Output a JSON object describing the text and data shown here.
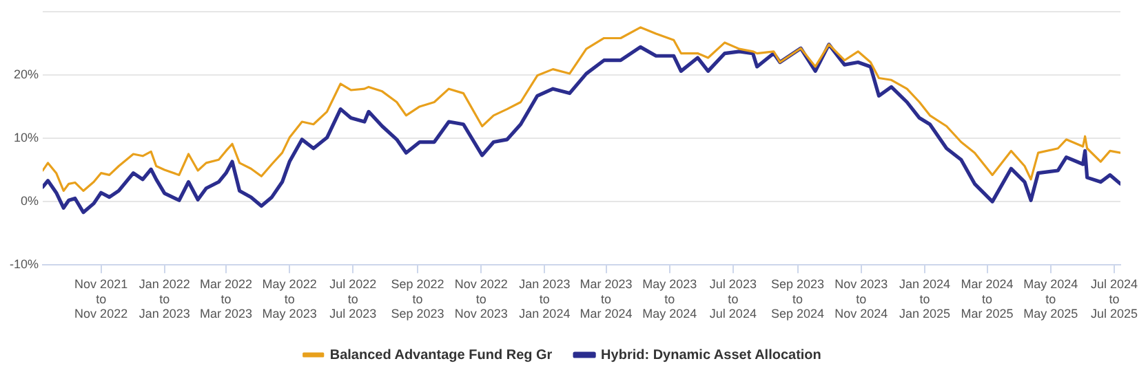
{
  "chart_data": {
    "type": "line",
    "x": [
      "2021-09-06",
      "2021-09-11",
      "2021-09-19",
      "2021-09-26",
      "2021-10-01",
      "2021-10-07",
      "2021-10-15",
      "2021-10-25",
      "2021-11-01",
      "2021-11-09",
      "2021-11-18",
      "2021-12-02",
      "2021-12-11",
      "2021-12-19",
      "2021-12-24",
      "2022-01-01",
      "2022-01-15",
      "2022-01-24",
      "2022-02-02",
      "2022-02-10",
      "2022-02-22",
      "2022-03-01",
      "2022-03-07",
      "2022-03-14",
      "2022-03-25",
      "2022-04-04",
      "2022-04-14",
      "2022-04-24",
      "2022-05-01",
      "2022-05-13",
      "2022-05-24",
      "2022-06-06",
      "2022-06-19",
      "2022-06-29",
      "2022-07-12",
      "2022-07-16",
      "2022-07-29",
      "2022-08-12",
      "2022-08-21",
      "2022-09-03",
      "2022-09-17",
      "2022-10-01",
      "2022-10-15",
      "2022-11-02",
      "2022-11-13",
      "2022-11-26",
      "2022-12-09",
      "2022-12-25",
      "2023-01-09",
      "2023-01-25",
      "2023-02-10",
      "2023-02-27",
      "2023-03-15",
      "2023-04-03",
      "2023-04-18",
      "2023-05-05",
      "2023-05-12",
      "2023-05-28",
      "2023-06-07",
      "2023-06-23",
      "2023-07-07",
      "2023-07-20",
      "2023-07-24",
      "2023-08-09",
      "2023-08-15",
      "2023-09-04",
      "2023-09-18",
      "2023-10-01",
      "2023-10-16",
      "2023-10-29",
      "2023-11-10",
      "2023-11-18",
      "2023-11-30",
      "2023-12-15",
      "2023-12-27",
      "2024-01-06",
      "2024-01-22",
      "2024-02-05",
      "2024-02-18",
      "2024-03-06",
      "2024-03-24",
      "2024-04-06",
      "2024-04-12",
      "2024-04-19",
      "2024-05-08",
      "2024-05-16",
      "2024-06-01",
      "2024-06-03",
      "2024-06-05",
      "2024-06-18",
      "2024-06-27",
      "2024-07-07"
    ],
    "series": [
      {
        "name": "Balanced Advantage Fund Reg Gr",
        "color": "#e8a01c",
        "values": [
          4.9,
          6.1,
          4.5,
          1.7,
          2.8,
          3.0,
          1.7,
          3.1,
          4.5,
          4.2,
          5.6,
          7.5,
          7.2,
          7.9,
          5.6,
          5.0,
          4.2,
          7.5,
          4.9,
          6.1,
          6.6,
          8.0,
          9.1,
          6.1,
          5.2,
          4.0,
          5.9,
          7.7,
          10.1,
          12.6,
          12.2,
          14.2,
          18.6,
          17.6,
          17.8,
          18.1,
          17.4,
          15.7,
          13.6,
          15.0,
          15.7,
          17.8,
          17.1,
          11.9,
          13.6,
          14.6,
          15.7,
          19.9,
          20.9,
          20.2,
          24.1,
          25.8,
          25.8,
          27.5,
          26.5,
          25.5,
          23.4,
          23.4,
          22.7,
          25.1,
          24.1,
          23.7,
          23.4,
          23.7,
          22.0,
          24.2,
          21.3,
          24.8,
          22.3,
          23.7,
          22.0,
          19.5,
          19.2,
          17.8,
          15.7,
          13.6,
          11.9,
          9.4,
          7.7,
          4.2,
          8.0,
          5.6,
          3.5,
          7.7,
          8.4,
          9.8,
          8.7,
          10.3,
          8.4,
          6.3,
          8.0,
          7.7
        ]
      },
      {
        "name": "Hybrid: Dynamic Asset Allocation",
        "color": "#2b2d8e",
        "values": [
          2.3,
          3.3,
          1.4,
          -1.0,
          0.2,
          0.5,
          -1.7,
          -0.3,
          1.4,
          0.7,
          1.7,
          4.5,
          3.5,
          5.1,
          3.5,
          1.3,
          0.2,
          3.1,
          0.3,
          2.1,
          3.1,
          4.5,
          6.3,
          1.7,
          0.7,
          -0.7,
          0.7,
          3.1,
          6.3,
          9.8,
          8.4,
          10.1,
          14.6,
          13.2,
          12.6,
          14.2,
          11.9,
          9.8,
          7.7,
          9.4,
          9.4,
          12.6,
          12.2,
          7.3,
          9.4,
          9.8,
          12.2,
          16.7,
          17.8,
          17.1,
          20.2,
          22.3,
          22.3,
          24.4,
          23.0,
          23.0,
          20.6,
          22.7,
          20.6,
          23.4,
          23.7,
          23.4,
          21.3,
          23.4,
          22.0,
          24.2,
          20.6,
          24.8,
          21.6,
          22.0,
          21.3,
          16.7,
          18.1,
          15.7,
          13.2,
          12.2,
          8.4,
          6.6,
          2.8,
          0.0,
          5.2,
          3.1,
          0.2,
          4.5,
          4.9,
          7.0,
          5.9,
          8.0,
          3.8,
          3.1,
          4.2,
          2.8
        ]
      }
    ],
    "xlim": [
      "2021-09-06",
      "2024-07-07"
    ],
    "xticks": [
      {
        "value": "2021-11-01",
        "label": "Nov 2021\nto\nNov 2022"
      },
      {
        "value": "2022-01-01",
        "label": "Jan 2022\nto\nJan 2023"
      },
      {
        "value": "2022-03-01",
        "label": "Mar 2022\nto\nMar 2023"
      },
      {
        "value": "2022-05-01",
        "label": "May 2022\nto\nMay 2023"
      },
      {
        "value": "2022-07-01",
        "label": "Jul 2022\nto\nJul 2023"
      },
      {
        "value": "2022-09-01",
        "label": "Sep 2022\nto\nSep 2023"
      },
      {
        "value": "2022-11-01",
        "label": "Nov 2022\nto\nNov 2023"
      },
      {
        "value": "2023-01-01",
        "label": "Jan 2023\nto\nJan 2024"
      },
      {
        "value": "2023-03-01",
        "label": "Mar 2023\nto\nMar 2024"
      },
      {
        "value": "2023-05-01",
        "label": "May 2023\nto\nMay 2024"
      },
      {
        "value": "2023-07-01",
        "label": "Jul 2023\nto\nJul 2024"
      },
      {
        "value": "2023-09-01",
        "label": "Sep 2023\nto\nSep 2024"
      },
      {
        "value": "2023-11-01",
        "label": "Nov 2023\nto\nNov 2024"
      },
      {
        "value": "2024-01-01",
        "label": "Jan 2024\nto\nJan 2025"
      },
      {
        "value": "2024-03-01",
        "label": "Mar 2024\nto\nMar 2025"
      },
      {
        "value": "2024-05-01",
        "label": "May 2024\nto\nMay 2025"
      },
      {
        "value": "2024-07-01",
        "label": "Jul 2024\nto\nJul 2025"
      }
    ],
    "ylim": [
      -10,
      30
    ],
    "yticks": [
      {
        "value": -10,
        "label": "-10%"
      },
      {
        "value": 0,
        "label": "0%"
      },
      {
        "value": 10,
        "label": "10%"
      },
      {
        "value": 20,
        "label": "20%"
      },
      {
        "value": 30,
        "label": null
      }
    ],
    "grid": "y",
    "legend": "bottom",
    "marker": "none",
    "line_style": "solid"
  }
}
